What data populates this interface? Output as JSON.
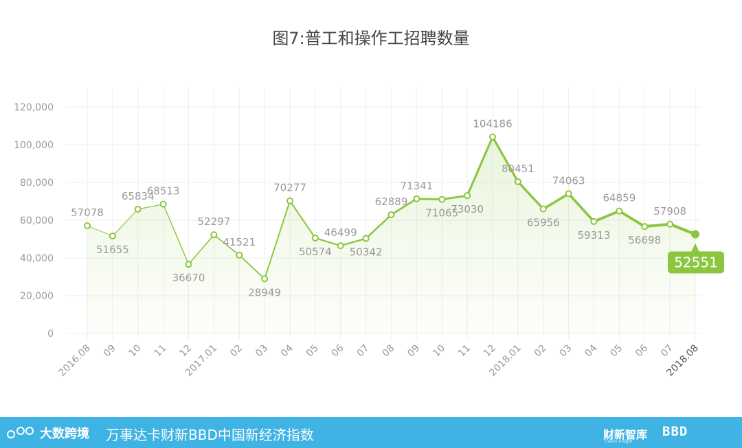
{
  "title": "图7:普工和操作工招聘数量",
  "colors": {
    "line": "#8cc63f",
    "point_fill": "#ffffff",
    "grid": "#eeeeee",
    "axis_text": "#999999",
    "callout": "#8cc63f",
    "footer": "#3fb3e3"
  },
  "chart_data": {
    "type": "line",
    "title": "图7:普工和操作工招聘数量",
    "categories": [
      "2016.08",
      "09",
      "10",
      "11",
      "12",
      "2017.01",
      "02",
      "03",
      "04",
      "05",
      "06",
      "07",
      "08",
      "09",
      "10",
      "11",
      "12",
      "2018.01",
      "02",
      "03",
      "04",
      "05",
      "06",
      "07",
      "2018.08"
    ],
    "values": [
      57078,
      51655,
      65834,
      68513,
      36670,
      52297,
      41521,
      28949,
      70277,
      50574,
      46499,
      50342,
      62889,
      71341,
      71065,
      73030,
      104186,
      80451,
      65956,
      74063,
      59313,
      64859,
      56698,
      57908,
      52551
    ],
    "label_positions": [
      "above",
      "below",
      "above",
      "above",
      "below",
      "above",
      "above",
      "below",
      "above",
      "below",
      "above",
      "below",
      "above",
      "above",
      "below",
      "below",
      "above",
      "above",
      "below",
      "above",
      "below",
      "above",
      "below",
      "above",
      "callout"
    ],
    "yticks": [
      0,
      20000,
      40000,
      60000,
      80000,
      100000,
      120000
    ],
    "ytick_labels": [
      "0",
      "20,000",
      "40,000",
      "60,000",
      "80,000",
      "100,000",
      "120,000"
    ],
    "ylim": [
      0,
      120000
    ],
    "grid": true,
    "highlight": {
      "index": 24,
      "label": "52551"
    }
  },
  "footer": {
    "logo_text": "大数跨境",
    "index_title": "万事达卡财新BBD中国新经济指数",
    "brand1": "财新智库",
    "brand1_sub": "Caixin Insight",
    "brand2": "BBD"
  }
}
